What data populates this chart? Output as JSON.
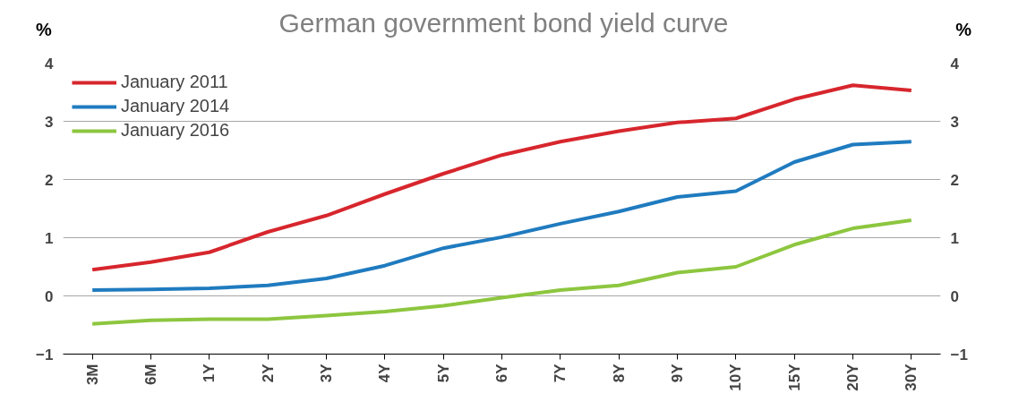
{
  "chart_data": {
    "type": "line",
    "title": "German government bond yield curve",
    "ylabel": "%",
    "y2label": "%",
    "categories": [
      "3M",
      "6M",
      "1Y",
      "2Y",
      "3Y",
      "4Y",
      "5Y",
      "6Y",
      "7Y",
      "8Y",
      "9Y",
      "10Y",
      "15Y",
      "20Y",
      "30Y"
    ],
    "series": [
      {
        "name": "January 2011",
        "color": "#d7262d",
        "values": [
          0.45,
          0.58,
          0.75,
          1.1,
          1.38,
          1.75,
          2.1,
          2.42,
          2.65,
          2.83,
          2.98,
          3.05,
          3.38,
          3.62,
          3.53
        ]
      },
      {
        "name": "January 2014",
        "color": "#1f7bbf",
        "values": [
          0.1,
          0.11,
          0.13,
          0.18,
          0.3,
          0.52,
          0.82,
          1.01,
          1.24,
          1.45,
          1.7,
          1.8,
          2.3,
          2.6,
          2.65
        ]
      },
      {
        "name": "January 2016",
        "color": "#8dc63f",
        "values": [
          -0.48,
          -0.42,
          -0.4,
          -0.4,
          -0.34,
          -0.27,
          -0.17,
          -0.03,
          0.1,
          0.18,
          0.4,
          0.5,
          0.88,
          1.16,
          1.3
        ]
      }
    ],
    "ylim": [
      -1,
      4
    ],
    "yticks": [
      -1,
      0,
      1,
      2,
      3,
      4
    ],
    "y2lim": [
      -1,
      4
    ],
    "y2ticks": [
      -1,
      0,
      1,
      2,
      3,
      4
    ],
    "grid": "y",
    "legend": "top left",
    "line_style": "solid",
    "marker": "none"
  }
}
